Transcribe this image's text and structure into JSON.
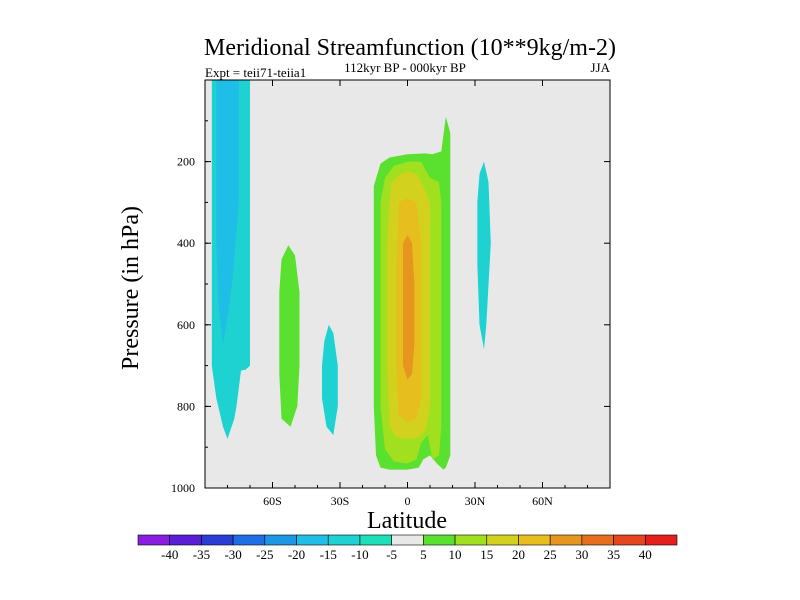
{
  "chart_data": {
    "type": "contour",
    "title": "Meridional Streamfunction (10**9kg/m-2)",
    "subtitle": "112kyr BP - 000kyr BP",
    "left_label": "Expt = teii71-teiia1",
    "right_label": "JJA",
    "xlabel": "Latitude",
    "ylabel": "Pressure (in hPa)",
    "xlim": [
      -90,
      90
    ],
    "ylim": [
      1000,
      0
    ],
    "x_ticks": [
      {
        "value": -60,
        "label": "60S"
      },
      {
        "value": -30,
        "label": "30S"
      },
      {
        "value": 0,
        "label": "0"
      },
      {
        "value": 30,
        "label": "30N"
      },
      {
        "value": 60,
        "label": "60N"
      }
    ],
    "y_ticks": [
      {
        "value": 200,
        "label": "200"
      },
      {
        "value": 400,
        "label": "400"
      },
      {
        "value": 600,
        "label": "600"
      },
      {
        "value": 800,
        "label": "800"
      },
      {
        "value": 1000,
        "label": "1000"
      }
    ],
    "background_color": "#e8e8e8",
    "colorbar": {
      "labels": [
        "-40",
        "-35",
        "-30",
        "-25",
        "-20",
        "-15",
        "-10",
        "-5",
        "5",
        "10",
        "15",
        "20",
        "25",
        "30",
        "35",
        "40"
      ],
      "colors": [
        "#8a1ee0",
        "#5a1ed6",
        "#2a3ed6",
        "#1e6ee6",
        "#1e96e6",
        "#1ebee6",
        "#1ed2d2",
        "#1ee0b8",
        "#e8e8e8",
        "#5ae02e",
        "#a0e01e",
        "#d2d21e",
        "#e6be1e",
        "#e6961e",
        "#e66e1e",
        "#e6461e",
        "#e61e1e"
      ]
    },
    "contours": [
      {
        "level": "-10",
        "color": "#1ed2d2",
        "points": [
          [
            -87,
            0
          ],
          [
            -70,
            0
          ],
          [
            -70,
            700
          ],
          [
            -72,
            710
          ],
          [
            -74,
            712
          ],
          [
            -76,
            800
          ],
          [
            -77,
            830
          ],
          [
            -80,
            880
          ],
          [
            -82,
            850
          ],
          [
            -85,
            780
          ],
          [
            -87,
            700
          ],
          [
            -87,
            400
          ]
        ]
      },
      {
        "level": "-15",
        "color": "#1ebee6",
        "points": [
          [
            -85,
            0
          ],
          [
            -75,
            0
          ],
          [
            -75,
            300
          ],
          [
            -78,
            500
          ],
          [
            -80,
            580
          ],
          [
            -82,
            650
          ],
          [
            -84,
            550
          ],
          [
            -85,
            400
          ]
        ]
      },
      {
        "level": "-10",
        "color": "#1ed2d2",
        "points": [
          [
            -35,
            600
          ],
          [
            -33,
            620
          ],
          [
            -31,
            700
          ],
          [
            -31,
            800
          ],
          [
            -33,
            870
          ],
          [
            -36,
            850
          ],
          [
            -38,
            780
          ],
          [
            -38,
            700
          ],
          [
            -37,
            640
          ]
        ]
      },
      {
        "level": "-10",
        "color": "#1ed2d2",
        "points": [
          [
            34,
            200
          ],
          [
            36,
            250
          ],
          [
            37,
            400
          ],
          [
            35,
            600
          ],
          [
            34,
            660
          ],
          [
            32,
            600
          ],
          [
            31,
            450
          ],
          [
            31,
            300
          ],
          [
            32,
            230
          ]
        ]
      },
      {
        "level": "5",
        "color": "#5ae02e",
        "points": [
          [
            -53,
            405
          ],
          [
            -50,
            430
          ],
          [
            -48,
            520
          ],
          [
            -48,
            700
          ],
          [
            -49,
            800
          ],
          [
            -52,
            850
          ],
          [
            -56,
            830
          ],
          [
            -57,
            720
          ],
          [
            -57,
            520
          ],
          [
            -56,
            440
          ]
        ]
      },
      {
        "level": "5",
        "color": "#5ae02e",
        "points": [
          [
            -12,
            205
          ],
          [
            -8,
            190
          ],
          [
            0,
            182
          ],
          [
            8,
            180
          ],
          [
            11,
            182
          ],
          [
            15,
            175
          ],
          [
            17,
            90
          ],
          [
            19,
            130
          ],
          [
            19,
            230
          ],
          [
            19,
            360
          ],
          [
            19,
            920
          ],
          [
            17,
            950
          ],
          [
            16,
            955
          ],
          [
            13,
            940
          ],
          [
            10,
            920
          ],
          [
            7,
            930
          ],
          [
            5,
            950
          ],
          [
            0,
            955
          ],
          [
            -8,
            955
          ],
          [
            -12,
            950
          ],
          [
            -14,
            920
          ],
          [
            -15,
            800
          ],
          [
            -15,
            400
          ],
          [
            -15,
            260
          ]
        ]
      },
      {
        "level": "10",
        "color": "#a0e01e",
        "points": [
          [
            -10,
            240
          ],
          [
            -6,
            210
          ],
          [
            0,
            200
          ],
          [
            6,
            200
          ],
          [
            10,
            240
          ],
          [
            14,
            250
          ],
          [
            15,
            300
          ],
          [
            15,
            600
          ],
          [
            15,
            850
          ],
          [
            14,
            920
          ],
          [
            11,
            930
          ],
          [
            9,
            870
          ],
          [
            6,
            890
          ],
          [
            4,
            930
          ],
          [
            0,
            940
          ],
          [
            -6,
            935
          ],
          [
            -10,
            905
          ],
          [
            -12,
            800
          ],
          [
            -12,
            500
          ],
          [
            -12,
            300
          ]
        ]
      },
      {
        "level": "15",
        "color": "#d2d21e",
        "points": [
          [
            -7,
            250
          ],
          [
            -3,
            230
          ],
          [
            0,
            225
          ],
          [
            4,
            230
          ],
          [
            7,
            260
          ],
          [
            10,
            300
          ],
          [
            10,
            500
          ],
          [
            10,
            800
          ],
          [
            8,
            860
          ],
          [
            5,
            875
          ],
          [
            0,
            880
          ],
          [
            -5,
            875
          ],
          [
            -8,
            850
          ],
          [
            -9,
            700
          ],
          [
            -9,
            400
          ],
          [
            -8,
            300
          ]
        ]
      },
      {
        "level": "20",
        "color": "#e6be1e",
        "points": [
          [
            -4,
            300
          ],
          [
            0,
            290
          ],
          [
            4,
            300
          ],
          [
            6,
            400
          ],
          [
            6,
            600
          ],
          [
            6,
            780
          ],
          [
            4,
            830
          ],
          [
            0,
            840
          ],
          [
            -4,
            820
          ],
          [
            -5,
            700
          ],
          [
            -5,
            450
          ],
          [
            -4,
            340
          ]
        ]
      },
      {
        "level": "25",
        "color": "#e6961e",
        "points": [
          [
            -2,
            400
          ],
          [
            0,
            380
          ],
          [
            2,
            400
          ],
          [
            3,
            500
          ],
          [
            3,
            650
          ],
          [
            2,
            720
          ],
          [
            0,
            735
          ],
          [
            -2,
            700
          ],
          [
            -2,
            550
          ]
        ]
      }
    ]
  }
}
